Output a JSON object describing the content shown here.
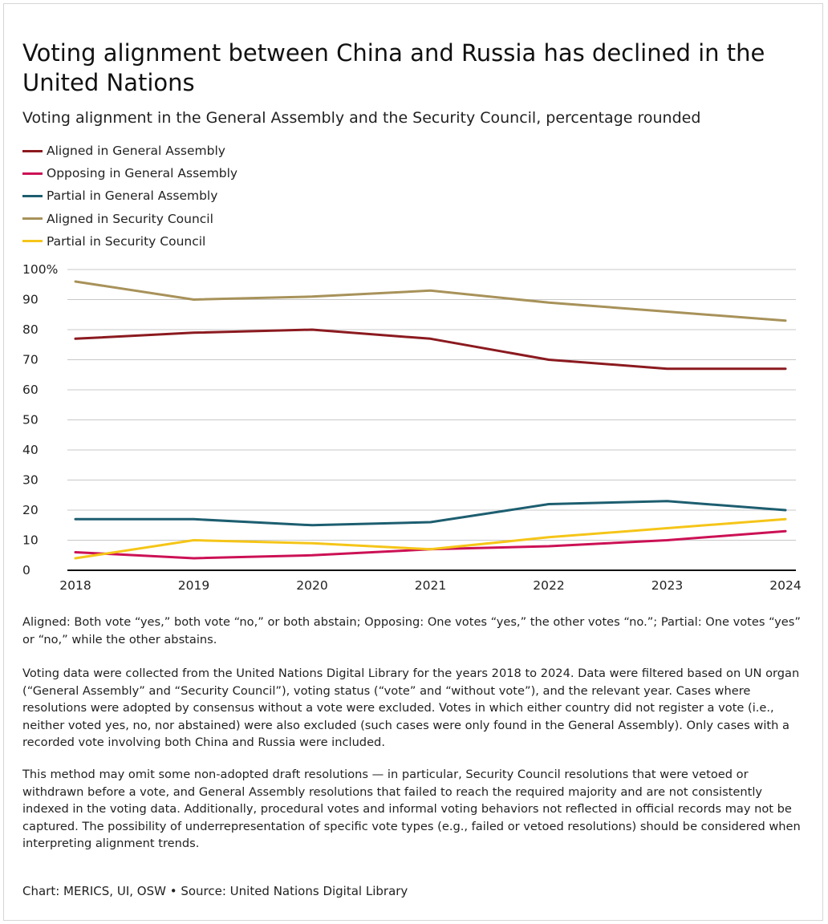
{
  "header": {
    "title": "Voting alignment between China and Russia has declined in the United Nations",
    "subtitle": "Voting alignment in the General Assembly and the Security Council, percentage rounded"
  },
  "chart_data": {
    "type": "line",
    "x": [
      "2018",
      "2019",
      "2020",
      "2021",
      "2022",
      "2023",
      "2024"
    ],
    "ylim": [
      0,
      100
    ],
    "yticks": [
      "0",
      "10",
      "20",
      "30",
      "40",
      "50",
      "60",
      "70",
      "80",
      "90",
      "100%"
    ],
    "grid": true,
    "legend_position": "top-left",
    "series": [
      {
        "name": "Aligned in General Assembly",
        "color": "#8b1a1f",
        "values": [
          77,
          79,
          80,
          77,
          70,
          67,
          67
        ]
      },
      {
        "name": "Opposing in General Assembly",
        "color": "#cc1155",
        "values": [
          6,
          4,
          5,
          7,
          8,
          10,
          13
        ]
      },
      {
        "name": "Partial in General Assembly",
        "color": "#1d5e70",
        "values": [
          17,
          17,
          15,
          16,
          22,
          23,
          20
        ]
      },
      {
        "name": "Aligned in Security Council",
        "color": "#a8925a",
        "values": [
          96,
          90,
          91,
          93,
          89,
          86,
          83
        ]
      },
      {
        "name": "Partial in Security Council",
        "color": "#f5c518",
        "values": [
          4,
          10,
          9,
          7,
          11,
          14,
          17
        ]
      }
    ]
  },
  "notes": {
    "definitions": "Aligned: Both vote “yes,” both vote “no,” or both abstain; Opposing: One votes “yes,” the other votes “no.”; Partial: One votes “yes” or “no,” while the other abstains.",
    "methodology": "Voting data were collected from the United Nations Digital Library for the years 2018 to 2024. Data were filtered based on UN organ (“General Assembly” and “Security Council”), voting status (“vote” and “without vote”), and the relevant year. Cases where resolutions were adopted by consensus without a vote were excluded. Votes in which either country did not register a vote (i.e., neither voted yes, no, nor abstained) were also excluded (such cases were only found in the General Assembly). Only cases with a recorded vote involving both China and Russia were included.",
    "limitations": "This method may omit some non-adopted draft resolutions — in particular, Security Council resolutions that were vetoed or withdrawn before a vote, and General Assembly resolutions that failed to reach the required majority and are not consistently indexed in the voting data. Additionally, procedural votes and informal voting behaviors not reflected in official records may not be captured. The possibility of underrepresentation of specific vote types (e.g., failed or vetoed resolutions) should be considered when interpreting alignment trends."
  },
  "footer": {
    "credit": "Chart: MERICS, UI, OSW • Source: United Nations Digital Library"
  }
}
